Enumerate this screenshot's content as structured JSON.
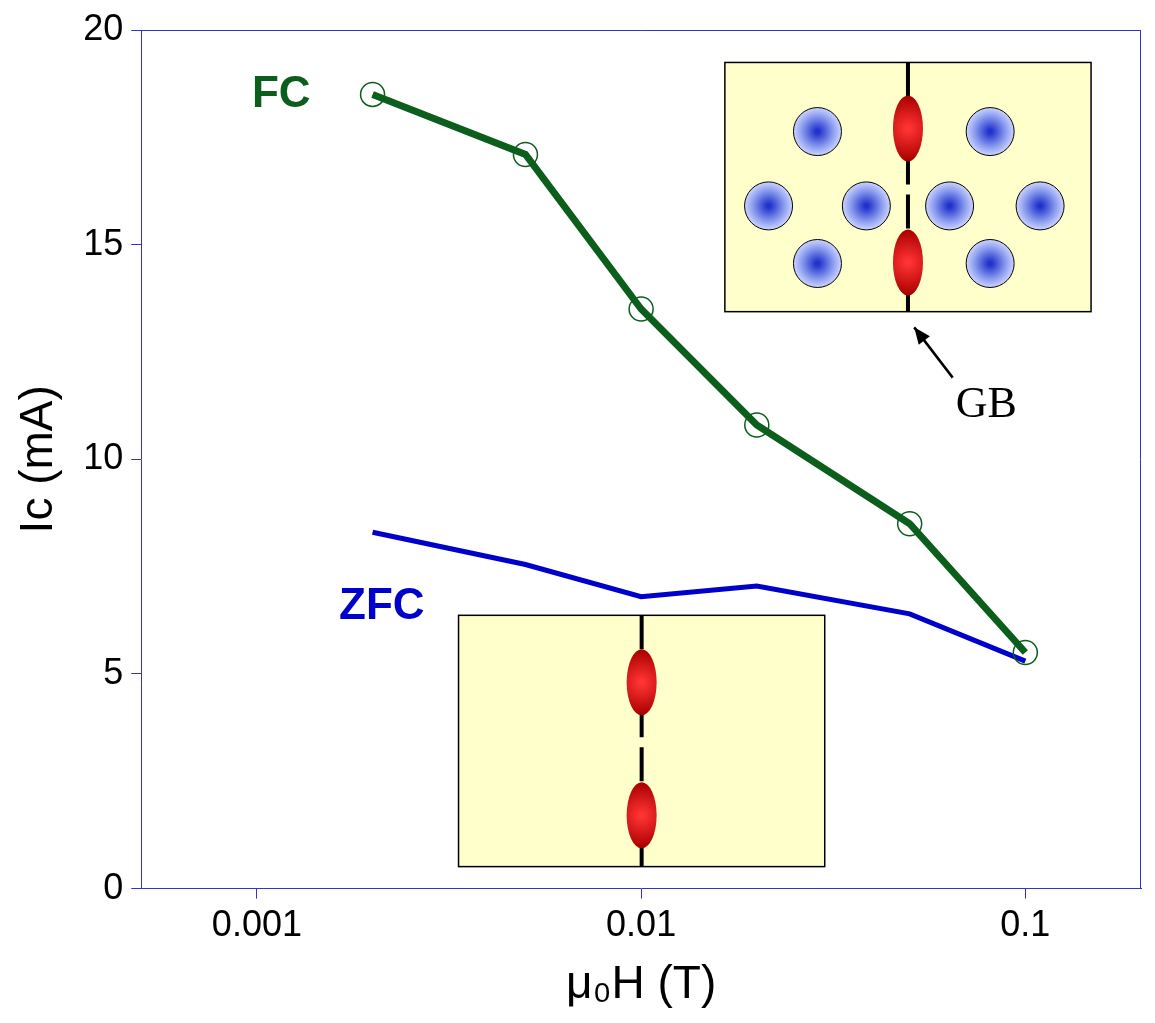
{
  "chart_data": {
    "type": "line",
    "x_label": "μ₀H (T)",
    "y_label": "Ic (mA)",
    "x": [
      0.002,
      0.005,
      0.01,
      0.02,
      0.05,
      0.1
    ],
    "series": [
      {
        "name": "FC",
        "color": "#0b5e1c",
        "marker": "circle",
        "line_style": "solid",
        "values": [
          18.5,
          17.1,
          13.5,
          10.8,
          8.5,
          5.5
        ]
      },
      {
        "name": "ZFC",
        "color": "#0000cc",
        "marker": "none",
        "line_style": "solid",
        "values": [
          8.3,
          7.55,
          6.8,
          7.05,
          6.4,
          5.3
        ]
      }
    ],
    "annotations": [
      "GB"
    ],
    "log": "x",
    "xlim": [
      0.0005,
      0.2
    ],
    "xticks": [
      0.001,
      0.01,
      0.1
    ],
    "ylim": [
      0,
      20
    ],
    "yticks": [
      0,
      5,
      10,
      15,
      20
    ],
    "grid": false,
    "tick_labels": true
  }
}
